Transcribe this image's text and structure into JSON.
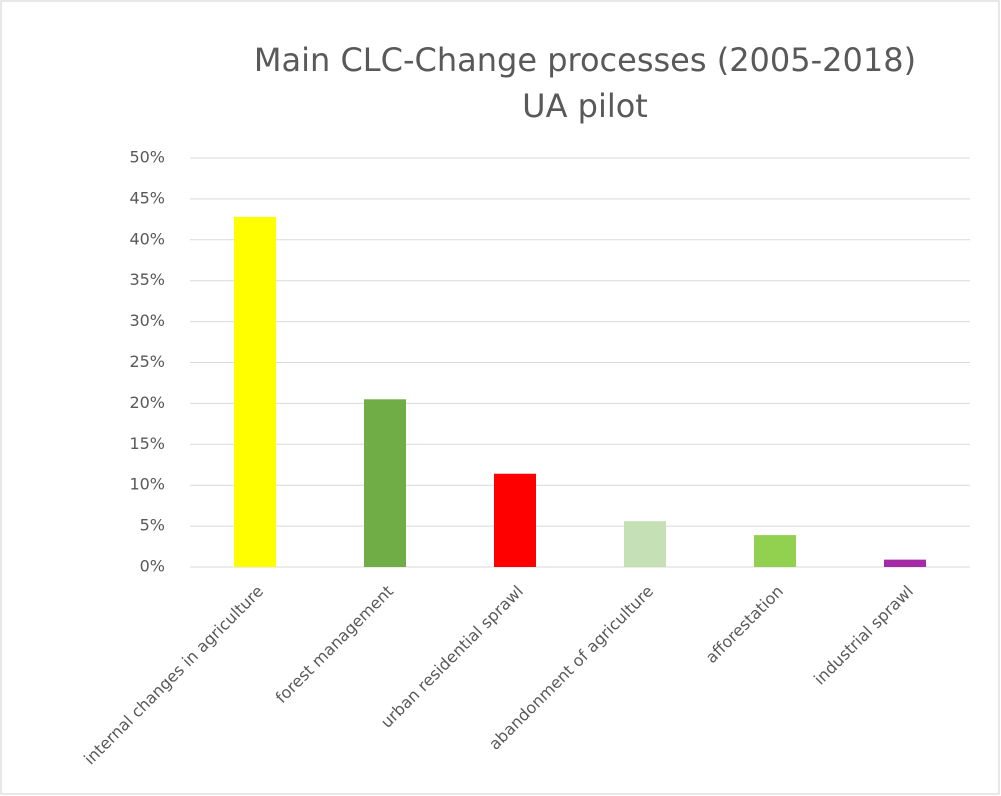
{
  "chart_data": {
    "type": "bar",
    "title": "Main CLC-Change processes (2005-2018)",
    "subtitle": "UA pilot",
    "categories": [
      "internal changes in agriculture",
      "forest management",
      "urban residential sprawl",
      "abandonment of agriculture",
      "afforestation",
      "industrial sprawl"
    ],
    "values": [
      42.8,
      20.5,
      11.4,
      5.6,
      3.9,
      0.9
    ],
    "colors": [
      "#ffff00",
      "#70ad47",
      "#ff0000",
      "#c5e0b4",
      "#92d050",
      "#a52aa5"
    ],
    "ylim": [
      0,
      50
    ],
    "yticks": [
      {
        "value": 0,
        "label": "0%"
      },
      {
        "value": 5,
        "label": "5%"
      },
      {
        "value": 10,
        "label": "10%"
      },
      {
        "value": 15,
        "label": "15%"
      },
      {
        "value": 20,
        "label": "20%"
      },
      {
        "value": 25,
        "label": "25%"
      },
      {
        "value": 30,
        "label": "30%"
      },
      {
        "value": 35,
        "label": "35%"
      },
      {
        "value": 40,
        "label": "40%"
      },
      {
        "value": 45,
        "label": "45%"
      },
      {
        "value": 50,
        "label": "50%"
      }
    ],
    "grid": true
  }
}
